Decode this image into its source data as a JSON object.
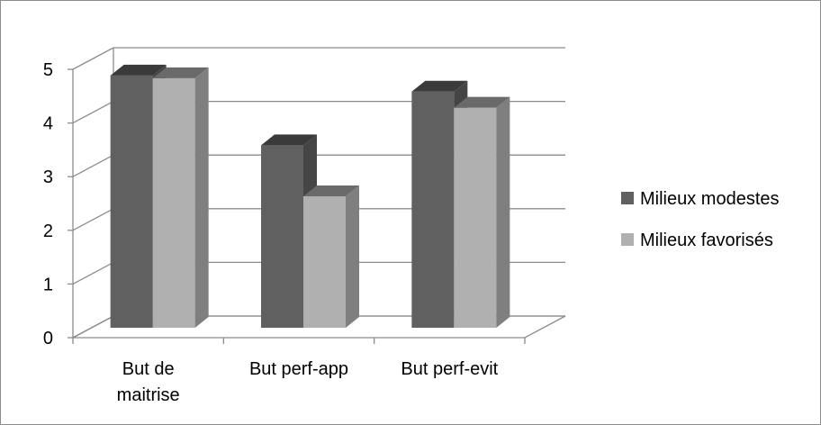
{
  "chart_data": {
    "type": "bar",
    "three_d": true,
    "categories": [
      [
        "But de",
        "maitrise"
      ],
      [
        "But perf-app"
      ],
      [
        "But perf-evit"
      ]
    ],
    "series": [
      {
        "name": "Milieux modestes",
        "values": [
          4.7,
          3.4,
          4.4
        ],
        "color": "#606060"
      },
      {
        "name": "Milieux favorisés",
        "values": [
          4.65,
          2.45,
          4.1
        ],
        "color": "#b0b0b0"
      }
    ],
    "ylim": [
      0,
      5
    ],
    "yticks": [
      "0",
      "1",
      "2",
      "3",
      "4",
      "5"
    ],
    "grid": true,
    "legend_position": "right"
  }
}
